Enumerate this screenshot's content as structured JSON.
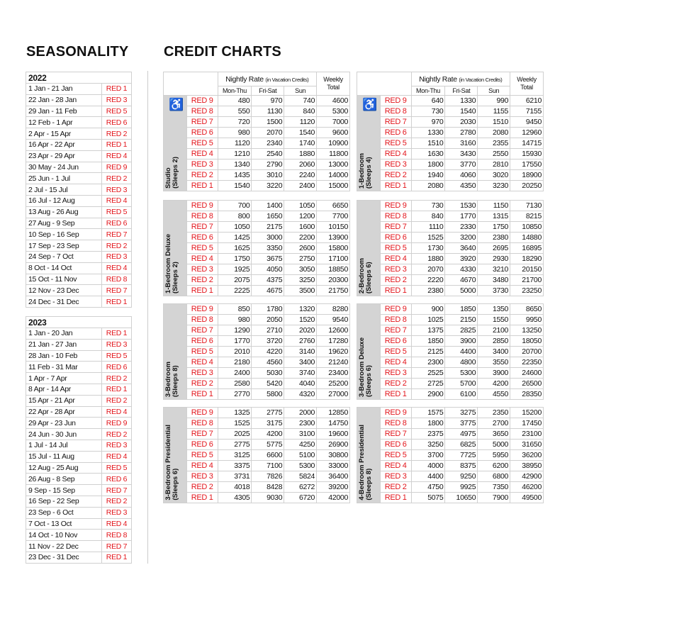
{
  "headings": {
    "seasonality": "SEASONALITY",
    "credit_charts": "CREDIT CHARTS"
  },
  "seasonality": [
    {
      "year": "2022",
      "rows": [
        [
          "1 Jan - 21 Jan",
          "RED 1"
        ],
        [
          "22 Jan - 28 Jan",
          "RED 3"
        ],
        [
          "29 Jan - 11 Feb",
          "RED 5"
        ],
        [
          "12 Feb - 1 Apr",
          "RED 6"
        ],
        [
          "2 Apr - 15 Apr",
          "RED 2"
        ],
        [
          "16 Apr - 22 Apr",
          "RED 1"
        ],
        [
          "23 Apr - 29 Apr",
          "RED 4"
        ],
        [
          "30 May - 24 Jun",
          "RED 9"
        ],
        [
          "25 Jun - 1 Jul",
          "RED 2"
        ],
        [
          "2 Jul - 15 Jul",
          "RED 3"
        ],
        [
          "16 Jul - 12 Aug",
          "RED 4"
        ],
        [
          "13 Aug - 26 Aug",
          "RED 5"
        ],
        [
          "27 Aug - 9 Sep",
          "RED 6"
        ],
        [
          "10 Sep - 16 Sep",
          "RED 7"
        ],
        [
          "17 Sep - 23 Sep",
          "RED 2"
        ],
        [
          "24 Sep - 7 Oct",
          "RED 3"
        ],
        [
          "8 Oct - 14 Oct",
          "RED 4"
        ],
        [
          "15 Oct - 11 Nov",
          "RED 8"
        ],
        [
          "12 Nov - 23 Dec",
          "RED 7"
        ],
        [
          "24 Dec - 31 Dec",
          "RED 1"
        ]
      ]
    },
    {
      "year": "2023",
      "rows": [
        [
          "1 Jan - 20 Jan",
          "RED 1"
        ],
        [
          "21 Jan - 27 Jan",
          "RED 3"
        ],
        [
          "28 Jan - 10 Feb",
          "RED 5"
        ],
        [
          "11 Feb - 31 Mar",
          "RED 6"
        ],
        [
          "1 Apr - 7 Apr",
          "RED 2"
        ],
        [
          "8 Apr - 14 Apr",
          "RED 1"
        ],
        [
          "15 Apr - 21 Apr",
          "RED 2"
        ],
        [
          "22 Apr - 28 Apr",
          "RED 4"
        ],
        [
          "29 Apr - 23 Jun",
          "RED 9"
        ],
        [
          "24 Jun - 30 Jun",
          "RED 2"
        ],
        [
          "1 Jul - 14 Jul",
          "RED 3"
        ],
        [
          "15 Jul - 11 Aug",
          "RED 4"
        ],
        [
          "12 Aug - 25 Aug",
          "RED 5"
        ],
        [
          "26 Aug - 8 Sep",
          "RED 6"
        ],
        [
          "9 Sep - 15 Sep",
          "RED 7"
        ],
        [
          "16 Sep - 22 Sep",
          "RED 2"
        ],
        [
          "23 Sep - 6 Oct",
          "RED 3"
        ],
        [
          "7 Oct - 13 Oct",
          "RED 4"
        ],
        [
          "14 Oct - 10 Nov",
          "RED 8"
        ],
        [
          "11 Nov - 22 Dec",
          "RED 7"
        ],
        [
          "23 Dec - 31 Dec",
          "RED 1"
        ]
      ]
    }
  ],
  "rate_header": {
    "nightly": "Nightly Rate",
    "nightly_note": "(in Vacation Credits)",
    "weekly": "Weekly Total",
    "cols": [
      "Mon-Thu",
      "Fri-Sat",
      "Sun"
    ]
  },
  "seasons": [
    "RED 9",
    "RED 8",
    "RED 7",
    "RED 6",
    "RED 5",
    "RED 4",
    "RED 3",
    "RED 2",
    "RED 1"
  ],
  "units": [
    {
      "name": "Studio",
      "sleeps": "(Sleeps 2)",
      "accessible": true,
      "icon": "wheelchair-icon",
      "rows": [
        [
          480,
          970,
          740,
          4600
        ],
        [
          550,
          1130,
          840,
          5300
        ],
        [
          720,
          1500,
          1120,
          7000
        ],
        [
          980,
          2070,
          1540,
          9600
        ],
        [
          1120,
          2340,
          1740,
          10900
        ],
        [
          1210,
          2540,
          1880,
          11800
        ],
        [
          1340,
          2790,
          2060,
          13000
        ],
        [
          1435,
          3010,
          2240,
          14000
        ],
        [
          1540,
          3220,
          2400,
          15000
        ]
      ]
    },
    {
      "name": "1-Bedroom",
      "sleeps": "(Sleeps 4)",
      "accessible": true,
      "icon": "wheelchair-icon",
      "rows": [
        [
          640,
          1330,
          990,
          6210
        ],
        [
          730,
          1540,
          1155,
          7155
        ],
        [
          970,
          2030,
          1510,
          9450
        ],
        [
          1330,
          2780,
          2080,
          12960
        ],
        [
          1510,
          3160,
          2355,
          14715
        ],
        [
          1630,
          3430,
          2550,
          15930
        ],
        [
          1800,
          3770,
          2810,
          17550
        ],
        [
          1940,
          4060,
          3020,
          18900
        ],
        [
          2080,
          4350,
          3230,
          20250
        ]
      ]
    },
    {
      "name": "1-Bedroom Deluxe",
      "sleeps": "(Sleeps 2)",
      "rows": [
        [
          700,
          1400,
          1050,
          6650
        ],
        [
          800,
          1650,
          1200,
          7700
        ],
        [
          1050,
          2175,
          1600,
          10150
        ],
        [
          1425,
          3000,
          2200,
          13900
        ],
        [
          1625,
          3350,
          2600,
          15800
        ],
        [
          1750,
          3675,
          2750,
          17100
        ],
        [
          1925,
          4050,
          3050,
          18850
        ],
        [
          2075,
          4375,
          3250,
          20300
        ],
        [
          2225,
          4675,
          3500,
          21750
        ]
      ]
    },
    {
      "name": "2-Bedroom",
      "sleeps": "(Sleeps 6)",
      "rows": [
        [
          730,
          1530,
          1150,
          7130
        ],
        [
          840,
          1770,
          1315,
          8215
        ],
        [
          1110,
          2330,
          1750,
          10850
        ],
        [
          1525,
          3200,
          2380,
          14880
        ],
        [
          1730,
          3640,
          2695,
          16895
        ],
        [
          1880,
          3920,
          2930,
          18290
        ],
        [
          2070,
          4330,
          3210,
          20150
        ],
        [
          2220,
          4670,
          3480,
          21700
        ],
        [
          2380,
          5000,
          3730,
          23250
        ]
      ]
    },
    {
      "name": "3-Bedroom",
      "sleeps": "(Sleeps 8)",
      "rows": [
        [
          850,
          1780,
          1320,
          8280
        ],
        [
          980,
          2050,
          1520,
          9540
        ],
        [
          1290,
          2710,
          2020,
          12600
        ],
        [
          1770,
          3720,
          2760,
          17280
        ],
        [
          2010,
          4220,
          3140,
          19620
        ],
        [
          2180,
          4560,
          3400,
          21240
        ],
        [
          2400,
          5030,
          3740,
          23400
        ],
        [
          2580,
          5420,
          4040,
          25200
        ],
        [
          2770,
          5800,
          4320,
          27000
        ]
      ]
    },
    {
      "name": "3-Bedroom Deluxe",
      "sleeps": "(Sleeps 6)",
      "rows": [
        [
          900,
          1850,
          1350,
          8650
        ],
        [
          1025,
          2150,
          1550,
          9950
        ],
        [
          1375,
          2825,
          2100,
          13250
        ],
        [
          1850,
          3900,
          2850,
          18050
        ],
        [
          2125,
          4400,
          3400,
          20700
        ],
        [
          2300,
          4800,
          3550,
          22350
        ],
        [
          2525,
          5300,
          3900,
          24600
        ],
        [
          2725,
          5700,
          4200,
          26500
        ],
        [
          2900,
          6100,
          4550,
          28350
        ]
      ]
    },
    {
      "name": "3-Bedroom Presidential",
      "sleeps": "(Sleeps 6)",
      "rows": [
        [
          1325,
          2775,
          2000,
          12850
        ],
        [
          1525,
          3175,
          2300,
          14750
        ],
        [
          2025,
          4200,
          3100,
          19600
        ],
        [
          2775,
          5775,
          4250,
          26900
        ],
        [
          3125,
          6600,
          5100,
          30800
        ],
        [
          3375,
          7100,
          5300,
          33000
        ],
        [
          3731,
          7826,
          5824,
          36400
        ],
        [
          4018,
          8428,
          6272,
          39200
        ],
        [
          4305,
          9030,
          6720,
          42000
        ]
      ]
    },
    {
      "name": "4-Bedroom Presidential",
      "sleeps": "(Sleeps 8)",
      "rows": [
        [
          1575,
          3275,
          2350,
          15200
        ],
        [
          1800,
          3775,
          2700,
          17450
        ],
        [
          2375,
          4975,
          3650,
          23100
        ],
        [
          3250,
          6825,
          5000,
          31650
        ],
        [
          3700,
          7725,
          5950,
          36200
        ],
        [
          4000,
          8375,
          6200,
          38950
        ],
        [
          4400,
          9250,
          6800,
          42900
        ],
        [
          4750,
          9925,
          7350,
          46200
        ],
        [
          5075,
          10650,
          7900,
          49500
        ]
      ]
    }
  ],
  "colors": {
    "season_red": "#e3161c",
    "side_band": "#d4d4d4",
    "grid": "#d0d0d0"
  }
}
